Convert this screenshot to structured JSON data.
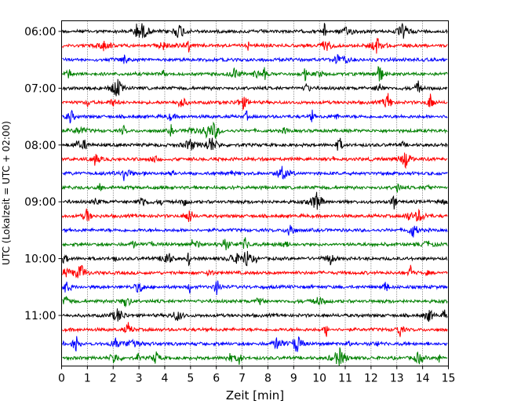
{
  "chart_data": {
    "type": "line",
    "subtype": "helicorder-seismogram",
    "xlabel": "Zeit  [min]",
    "ylabel": "UTC (Lokalzeit = UTC + 02:00)",
    "xlim": [
      0,
      15
    ],
    "x_ticks": [
      "0",
      "1",
      "2",
      "3",
      "4",
      "5",
      "6",
      "7",
      "8",
      "9",
      "10",
      "11",
      "12",
      "13",
      "14",
      "15"
    ],
    "y_ticks": [
      "06:00",
      "07:00",
      "08:00",
      "09:00",
      "10:00",
      "11:00"
    ],
    "grid_x": "dotted",
    "trace_colors": [
      "#000000",
      "#ff0000",
      "#0000ff",
      "#008000"
    ],
    "traces_per_hour": 4,
    "trace_count": 24,
    "start_time": "06:00",
    "minutes_per_trace": 15
  }
}
